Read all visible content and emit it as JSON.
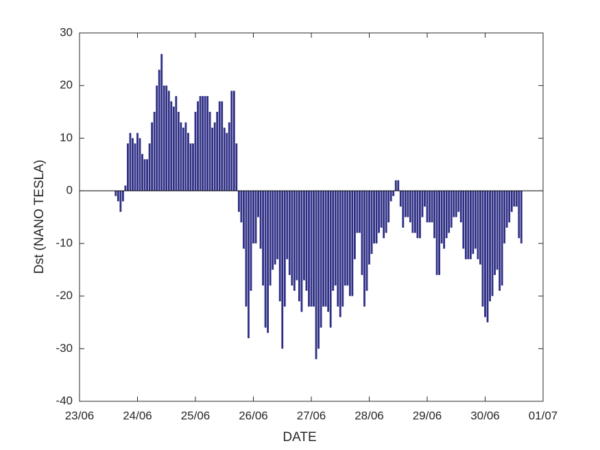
{
  "chart_data": {
    "type": "bar",
    "xlabel": "DATE",
    "ylabel": "Dst (NANO TESLA)",
    "color": "#2e2e85",
    "x": [
      15,
      16,
      17,
      18,
      19,
      20,
      21,
      22,
      23,
      24,
      25,
      26,
      27,
      28,
      29,
      30,
      31,
      32,
      33,
      34,
      35,
      36,
      37,
      38,
      39,
      40,
      41,
      42,
      43,
      44,
      45,
      46,
      47,
      48,
      49,
      50,
      51,
      52,
      53,
      54,
      55,
      56,
      57,
      58,
      59,
      60,
      61,
      62,
      63,
      64,
      65,
      66,
      67,
      68,
      69,
      70,
      71,
      72,
      73,
      74,
      75,
      76,
      77,
      78,
      79,
      80,
      81,
      82,
      83,
      84,
      85,
      86,
      87,
      88,
      89,
      90,
      91,
      92,
      93,
      94,
      95,
      96,
      97,
      98,
      99,
      100,
      101,
      102,
      103,
      104,
      105,
      106,
      107,
      108,
      109,
      110,
      111,
      112,
      113,
      114,
      115,
      116,
      117,
      118,
      119,
      120,
      121,
      122,
      123,
      124,
      125,
      126,
      127,
      128,
      129,
      130,
      131,
      132,
      133,
      134,
      135,
      136,
      137,
      138,
      139,
      140,
      141,
      142,
      143,
      144,
      145,
      146,
      147,
      148,
      149,
      150,
      151,
      152,
      153,
      154,
      155,
      156,
      157,
      158,
      159,
      160,
      161,
      162,
      163,
      164,
      165,
      166,
      167,
      168,
      169,
      170,
      171,
      172,
      173,
      174,
      175,
      176,
      177,
      178,
      179,
      180,
      181,
      182,
      183
    ],
    "values": [
      -1,
      -2,
      -4,
      -2,
      1,
      9,
      11,
      10,
      9,
      11,
      10,
      7,
      6,
      6,
      9,
      13,
      15,
      20,
      23,
      26,
      20,
      20,
      19,
      17,
      16,
      18,
      15,
      13,
      12,
      13,
      11,
      9,
      9,
      15,
      17,
      18,
      18,
      18,
      18,
      15,
      12,
      13,
      15,
      17,
      17,
      12,
      11,
      13,
      19,
      19,
      9,
      -4,
      -6,
      -11,
      -22,
      -28,
      -19,
      -10,
      -10,
      -5,
      -11,
      -18,
      -26,
      -27,
      -18,
      -15,
      -14,
      -13,
      -21,
      -30,
      -22,
      -13,
      -16,
      -18,
      -19,
      -17,
      -21,
      -23,
      -17,
      -19,
      -22,
      -22,
      -22,
      -32,
      -30,
      -26,
      -22,
      -22,
      -23,
      -26,
      -19,
      -18,
      -22,
      -24,
      -22,
      -18,
      -18,
      -20,
      -20,
      -13,
      -8,
      -8,
      -16,
      -22,
      -19,
      -14,
      -12,
      -10,
      -10,
      -8,
      -7,
      -9,
      -8,
      -6,
      -2,
      -1,
      2,
      2,
      -3,
      -7,
      -5,
      -5,
      -6,
      -8,
      -8,
      -9,
      -9,
      -5,
      -3,
      -6,
      -6,
      -6,
      -9,
      -16,
      -16,
      -10,
      -11,
      -9,
      -8,
      -7,
      -5,
      -5,
      -4,
      -6,
      -11,
      -13,
      -13,
      -13,
      -12,
      -11,
      -13,
      -14,
      -22,
      -24,
      -25,
      -21,
      -20,
      -16,
      -15,
      -19,
      -18,
      -10,
      -7,
      -6,
      -4,
      -3,
      -3,
      -9,
      -10
    ],
    "xlim": [
      0,
      192
    ],
    "xticks": [
      {
        "value": 0,
        "label": "23/06"
      },
      {
        "value": 24,
        "label": "24/06"
      },
      {
        "value": 48,
        "label": "25/06"
      },
      {
        "value": 72,
        "label": "26/06"
      },
      {
        "value": 96,
        "label": "27/06"
      },
      {
        "value": 120,
        "label": "28/06"
      },
      {
        "value": 144,
        "label": "29/06"
      },
      {
        "value": 168,
        "label": "30/06"
      },
      {
        "value": 192,
        "label": "01/07"
      }
    ],
    "ylim": [
      -40,
      30
    ],
    "yticks": [
      -40,
      -30,
      -20,
      -10,
      0,
      10,
      20,
      30
    ]
  }
}
